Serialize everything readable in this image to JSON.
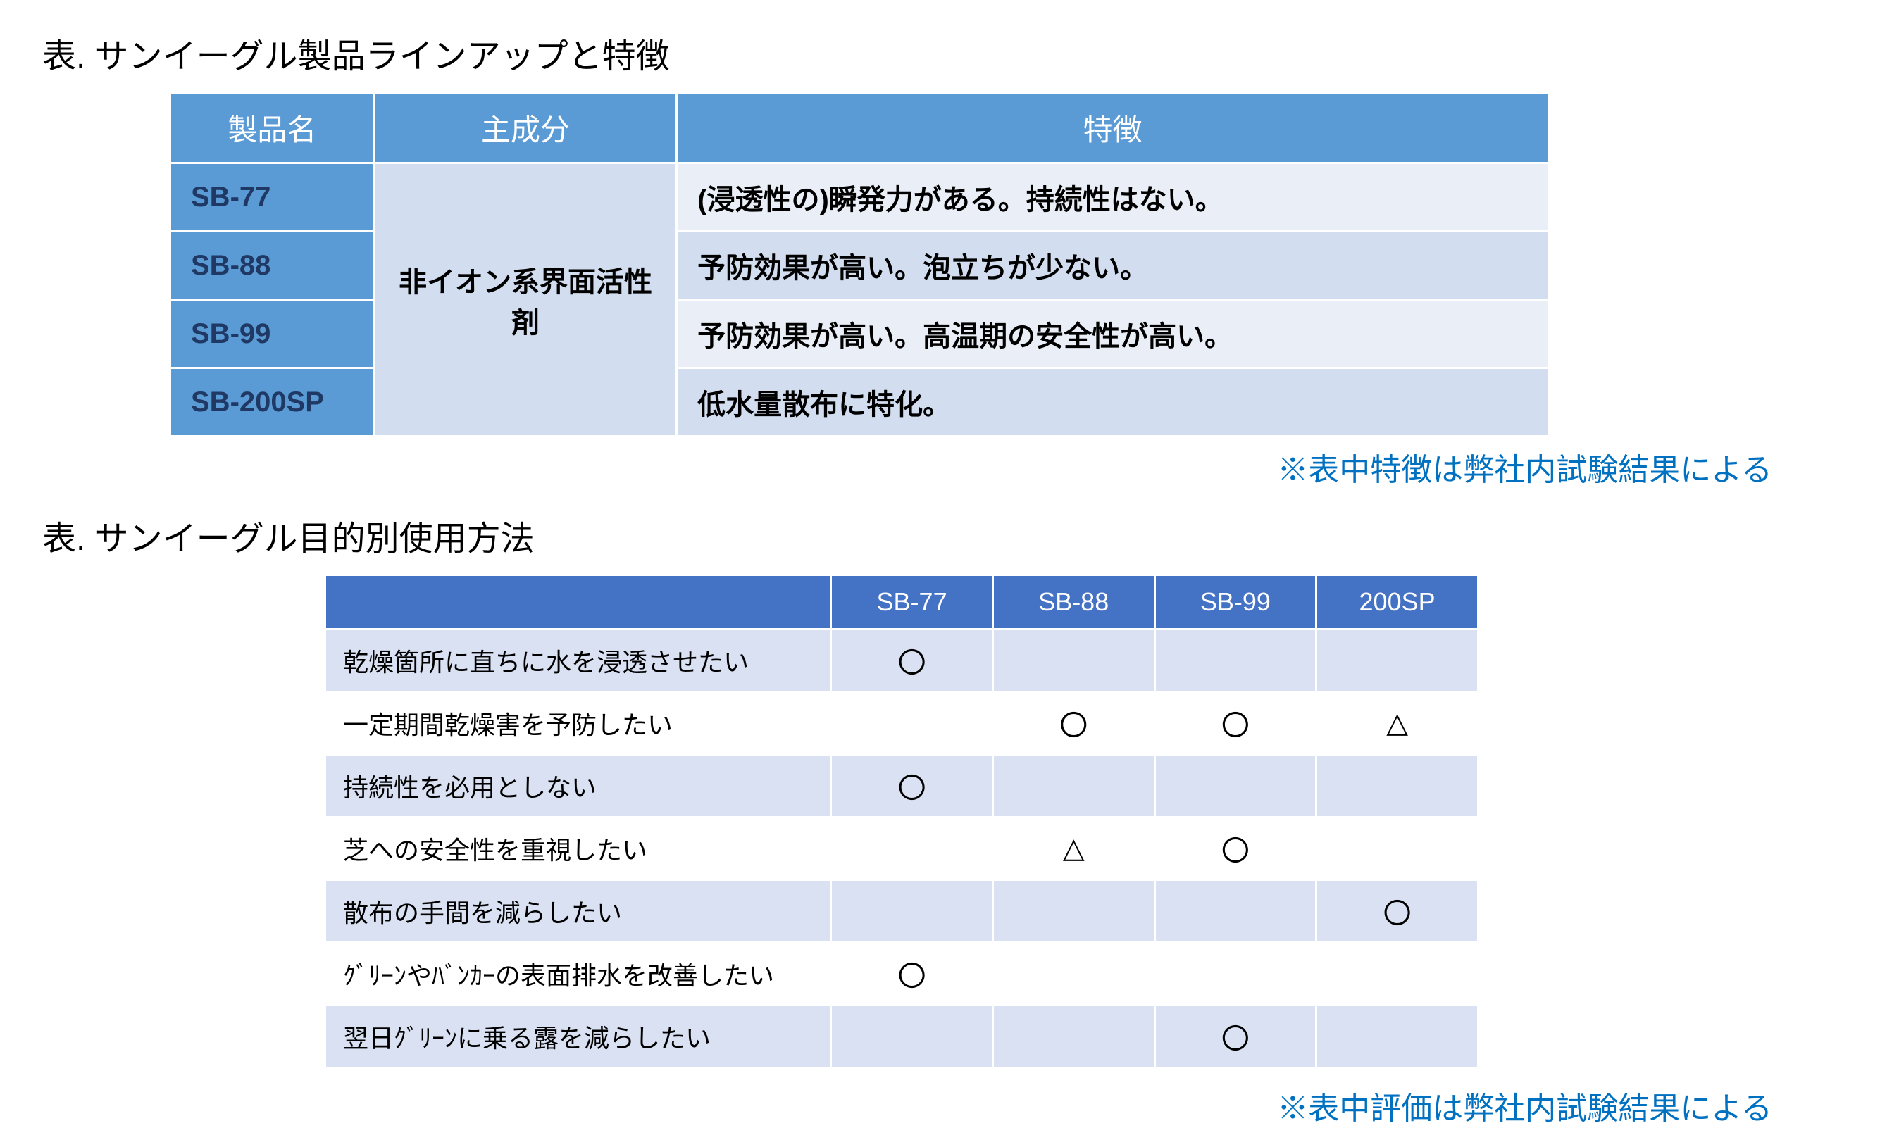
{
  "table1": {
    "title": "表. サンイーグル製品ラインアップと特徴",
    "headers": {
      "col1": "製品名",
      "col2": "主成分",
      "col3": "特徴"
    },
    "ingredient": "非イオン系界面活性剤",
    "rows": [
      {
        "name": "SB-77",
        "feature": "(浸透性の)瞬発力がある。持続性はない。"
      },
      {
        "name": "SB-88",
        "feature": "予防効果が高い。泡立ちが少ない。"
      },
      {
        "name": "SB-99",
        "feature": "予防効果が高い。高温期の安全性が高い。"
      },
      {
        "name": "SB-200SP",
        "feature": "低水量散布に特化。"
      }
    ],
    "note": "※表中特徴は弊社内試験結果による",
    "colors": {
      "header_bg": "#5b9bd5",
      "header_text": "#ffffff",
      "product_bg": "#5b9bd5",
      "product_text": "#1f3864",
      "ingredient_bg": "#d2deef",
      "feature_bg_odd": "#eaeff7",
      "feature_bg_even": "#d2deef",
      "note_color": "#0070c0"
    },
    "fonts": {
      "title_size": 48,
      "header_size": 42,
      "cell_size": 40,
      "note_size": 44
    }
  },
  "table2": {
    "title": "表. サンイーグル目的別使用方法",
    "headers": {
      "rowhead": "",
      "cols": [
        "SB-77",
        "SB-88",
        "SB-99",
        "200SP"
      ]
    },
    "rows": [
      {
        "label": "乾燥箇所に直ちに水を浸透させたい",
        "marks": [
          "〇",
          "",
          "",
          ""
        ]
      },
      {
        "label": "一定期間乾燥害を予防したい",
        "marks": [
          "",
          "〇",
          "〇",
          "△"
        ]
      },
      {
        "label": "持続性を必用としない",
        "marks": [
          "〇",
          "",
          "",
          ""
        ]
      },
      {
        "label": "芝への安全性を重視したい",
        "marks": [
          "",
          "△",
          "〇",
          ""
        ]
      },
      {
        "label": "散布の手間を減らしたい",
        "marks": [
          "",
          "",
          "",
          "〇"
        ]
      },
      {
        "label": "ｸﾞﾘｰﾝやﾊﾞﾝｶｰの表面排水を改善したい",
        "marks": [
          "〇",
          "",
          "",
          ""
        ]
      },
      {
        "label": "翌日ｸﾞﾘｰﾝに乗る露を減らしたい",
        "marks": [
          "",
          "",
          "〇",
          ""
        ]
      }
    ],
    "note": "※表中評価は弊社内試験結果による",
    "colors": {
      "header_bg": "#4472c4",
      "header_text": "#ffffff",
      "row_bg_odd": "#d9e1f2",
      "row_bg_even": "#ffffff",
      "note_color": "#0070c0"
    },
    "fonts": {
      "title_size": 48,
      "header_size": 36,
      "cell_size": 36,
      "note_size": 44
    }
  }
}
